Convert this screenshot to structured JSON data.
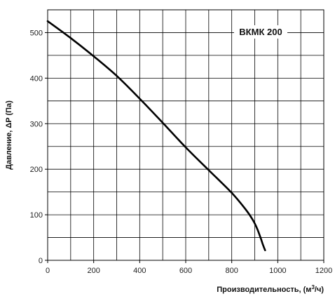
{
  "chart_data": {
    "type": "line",
    "title": "",
    "xlabel": "Производительность, (м",
    "xlabel_sup": "3",
    "xlabel_tail": "/ч)",
    "ylabel": "Давление, ΔP (Па)",
    "xlim": [
      0,
      1200
    ],
    "ylim": [
      0,
      550
    ],
    "x_ticks": [
      0,
      200,
      400,
      600,
      800,
      1000,
      1200
    ],
    "y_ticks": [
      0,
      100,
      200,
      300,
      400,
      500
    ],
    "grid": true,
    "legend_placement": "top-right",
    "series": [
      {
        "name": "ВКМК 200",
        "color": "#000000",
        "x": [
          0,
          100,
          200,
          300,
          400,
          500,
          600,
          700,
          800,
          860,
          890,
          910,
          925,
          935,
          945
        ],
        "y": [
          525,
          488,
          448,
          405,
          355,
          302,
          248,
          198,
          148,
          112,
          90,
          70,
          50,
          35,
          22
        ]
      }
    ]
  }
}
